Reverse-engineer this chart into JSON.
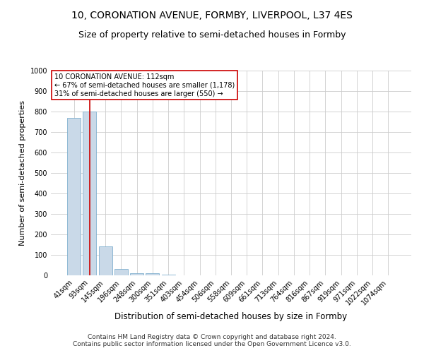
{
  "title": "10, CORONATION AVENUE, FORMBY, LIVERPOOL, L37 4ES",
  "subtitle": "Size of property relative to semi-detached houses in Formby",
  "xlabel": "Distribution of semi-detached houses by size in Formby",
  "ylabel": "Number of semi-detached properties",
  "footer_line1": "Contains HM Land Registry data © Crown copyright and database right 2024.",
  "footer_line2": "Contains public sector information licensed under the Open Government Licence v3.0.",
  "categories": [
    "41sqm",
    "93sqm",
    "145sqm",
    "196sqm",
    "248sqm",
    "300sqm",
    "351sqm",
    "403sqm",
    "454sqm",
    "506sqm",
    "558sqm",
    "609sqm",
    "661sqm",
    "713sqm",
    "764sqm",
    "816sqm",
    "867sqm",
    "919sqm",
    "971sqm",
    "1022sqm",
    "1074sqm"
  ],
  "values": [
    770,
    800,
    140,
    30,
    12,
    10,
    5,
    0,
    0,
    0,
    0,
    0,
    0,
    0,
    0,
    0,
    0,
    0,
    0,
    0,
    0
  ],
  "bar_color": "#c9d9e8",
  "bar_edgecolor": "#6ea6c8",
  "grid_color": "#cccccc",
  "annotation_line1": "10 CORONATION AVENUE: 112sqm",
  "annotation_line2": "← 67% of semi-detached houses are smaller (1,178)",
  "annotation_line3": "31% of semi-detached houses are larger (550) →",
  "annotation_box_color": "#ffffff",
  "annotation_box_edgecolor": "#cc0000",
  "vline_color": "#cc0000",
  "vline_x": 1.0,
  "ylim": [
    0,
    1000
  ],
  "yticks": [
    0,
    100,
    200,
    300,
    400,
    500,
    600,
    700,
    800,
    900,
    1000
  ],
  "background_color": "#ffffff",
  "title_fontsize": 10,
  "subtitle_fontsize": 9,
  "xlabel_fontsize": 8.5,
  "ylabel_fontsize": 8,
  "tick_fontsize": 7,
  "annotation_fontsize": 7,
  "footer_fontsize": 6.5
}
